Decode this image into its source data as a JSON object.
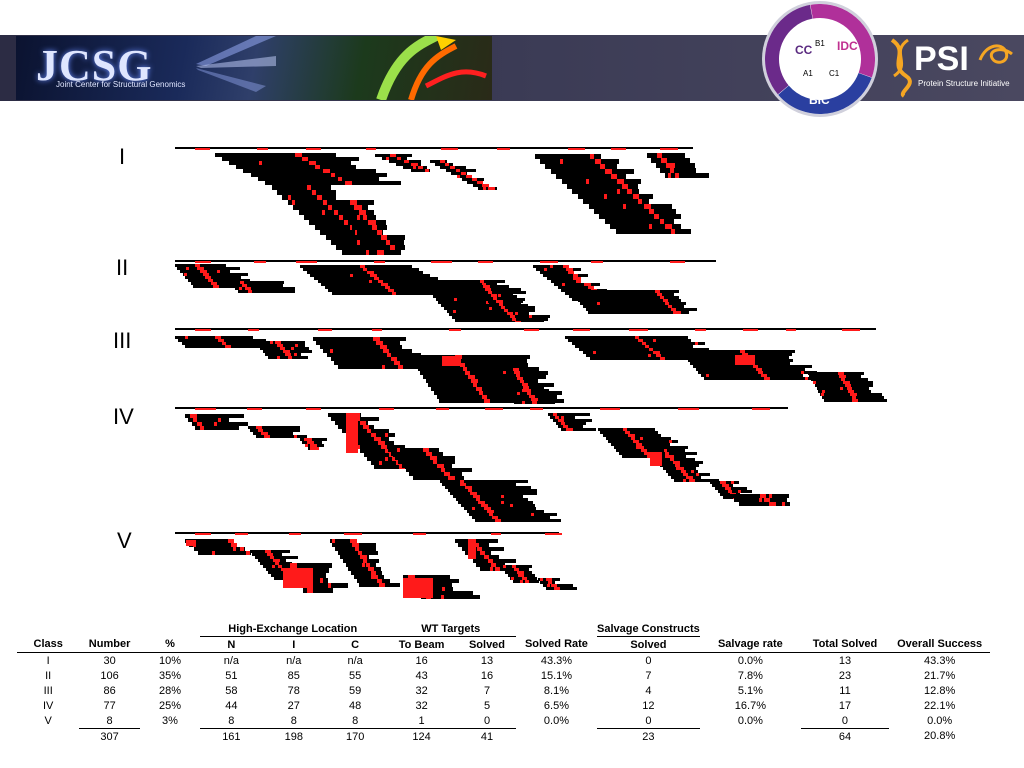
{
  "banner": {
    "jcsg_logo_text": "JCSG",
    "jcsg_subtitle": "Joint Center for Structural Genomics",
    "psi_text": "PSI",
    "psi_subtitle": "Protein Structure Initiative",
    "circle_labels": [
      "CC",
      "B1",
      "IDC",
      "A1",
      "C1",
      "BIC"
    ]
  },
  "colors": {
    "black": "#000000",
    "red": "#ff1a1a"
  },
  "classes": [
    "I",
    "II",
    "III",
    "IV",
    "V"
  ],
  "table": {
    "group_headers": {
      "high_exchange": "High-Exchange Location",
      "wt_targets": "WT Targets",
      "salvage": "Salvage Constructs"
    },
    "columns": [
      "Class",
      "Number",
      "%",
      "N",
      "I",
      "C",
      "To Beam",
      "Solved",
      "Solved Rate",
      "Solved",
      "Salvage rate",
      "Total Solved",
      "Overall Success"
    ],
    "rows": [
      [
        "I",
        "30",
        "10%",
        "n/a",
        "n/a",
        "n/a",
        "16",
        "13",
        "43.3%",
        "0",
        "0.0%",
        "13",
        "43.3%"
      ],
      [
        "II",
        "106",
        "35%",
        "51",
        "85",
        "55",
        "43",
        "16",
        "15.1%",
        "7",
        "7.8%",
        "23",
        "21.7%"
      ],
      [
        "III",
        "86",
        "28%",
        "58",
        "78",
        "59",
        "32",
        "7",
        "8.1%",
        "4",
        "5.1%",
        "11",
        "12.8%"
      ],
      [
        "IV",
        "77",
        "25%",
        "44",
        "27",
        "48",
        "32",
        "5",
        "6.5%",
        "12",
        "16.7%",
        "17",
        "22.1%"
      ],
      [
        "V",
        "8",
        "3%",
        "8",
        "8",
        "8",
        "1",
        "0",
        "0.0%",
        "0",
        "0.0%",
        "0",
        "0.0%"
      ]
    ],
    "totals": [
      "",
      "307",
      "",
      "161",
      "198",
      "170",
      "124",
      "41",
      "",
      "23",
      "",
      "64",
      "20.8%"
    ]
  }
}
